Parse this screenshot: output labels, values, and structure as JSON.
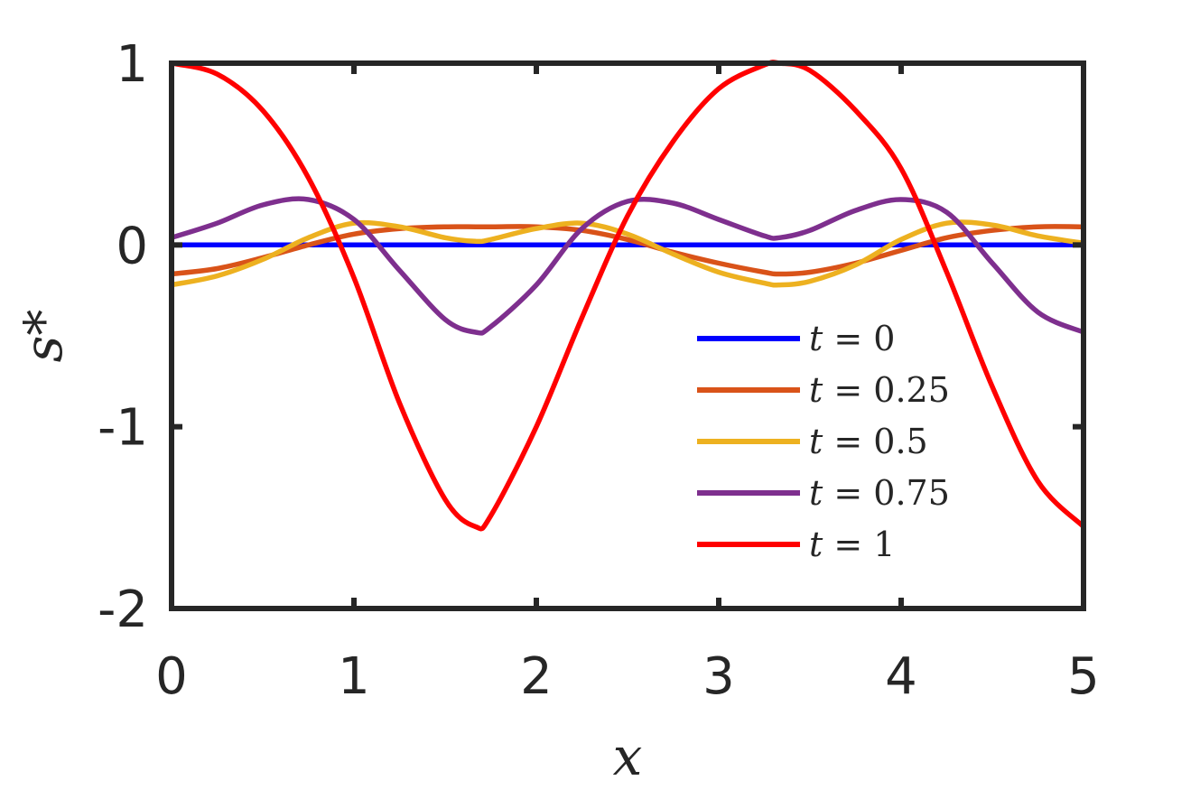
{
  "chart_data": {
    "type": "line",
    "xlabel": "x",
    "ylabel": "s*",
    "xlim": [
      0,
      5
    ],
    "ylim": [
      -2,
      1
    ],
    "xticks": [
      "0",
      "1",
      "2",
      "3",
      "4",
      "5"
    ],
    "yticks": [
      "-2",
      "-1",
      "0",
      "1"
    ],
    "grid": false,
    "legend_position": "lower-right",
    "x": [
      0,
      0.25,
      0.5,
      0.75,
      1,
      1.25,
      1.5,
      1.667,
      1.75,
      2,
      2.25,
      2.5,
      2.75,
      3,
      3.25,
      3.333,
      3.5,
      3.75,
      4,
      4.25,
      4.5,
      4.75,
      5
    ],
    "series": [
      {
        "name": "t = 0",
        "label_var": "t",
        "label_value": "0",
        "color": "#0000ff",
        "values": [
          0,
          0,
          0,
          0,
          0,
          0,
          0,
          0,
          0,
          0,
          0,
          0,
          0,
          0,
          0,
          0,
          0,
          0,
          0,
          0,
          0,
          0,
          0
        ]
      },
      {
        "name": "t = 0.25",
        "label_var": "t",
        "label_value": "0.25",
        "color": "#d95319",
        "values": [
          -0.16,
          -0.13,
          -0.07,
          0.0,
          0.06,
          0.09,
          0.1,
          0.1,
          0.1,
          0.1,
          0.08,
          0.03,
          -0.04,
          -0.1,
          -0.15,
          -0.16,
          -0.15,
          -0.1,
          -0.03,
          0.04,
          0.08,
          0.1,
          0.1
        ]
      },
      {
        "name": "t = 0.5",
        "label_var": "t",
        "label_value": "0.5",
        "color": "#edb120",
        "values": [
          -0.22,
          -0.17,
          -0.08,
          0.04,
          0.12,
          0.1,
          0.04,
          0.02,
          0.03,
          0.09,
          0.12,
          0.06,
          -0.05,
          -0.15,
          -0.21,
          -0.22,
          -0.2,
          -0.11,
          0.03,
          0.12,
          0.11,
          0.05,
          0.01
        ]
      },
      {
        "name": "t = 0.75",
        "label_var": "t",
        "label_value": "0.75",
        "color": "#7e2f8e",
        "values": [
          0.04,
          0.12,
          0.22,
          0.25,
          0.14,
          -0.14,
          -0.41,
          -0.48,
          -0.45,
          -0.22,
          0.09,
          0.24,
          0.23,
          0.14,
          0.05,
          0.04,
          0.08,
          0.19,
          0.25,
          0.18,
          -0.1,
          -0.37,
          -0.48
        ]
      },
      {
        "name": "t = 1",
        "label_var": "t",
        "label_value": "1",
        "color": "#ff0000",
        "values": [
          1.0,
          0.94,
          0.74,
          0.37,
          -0.18,
          -0.87,
          -1.4,
          -1.55,
          -1.49,
          -1.0,
          -0.4,
          0.16,
          0.57,
          0.86,
          0.99,
          1.0,
          0.96,
          0.74,
          0.42,
          -0.15,
          -0.78,
          -1.3,
          -1.55
        ]
      }
    ]
  }
}
